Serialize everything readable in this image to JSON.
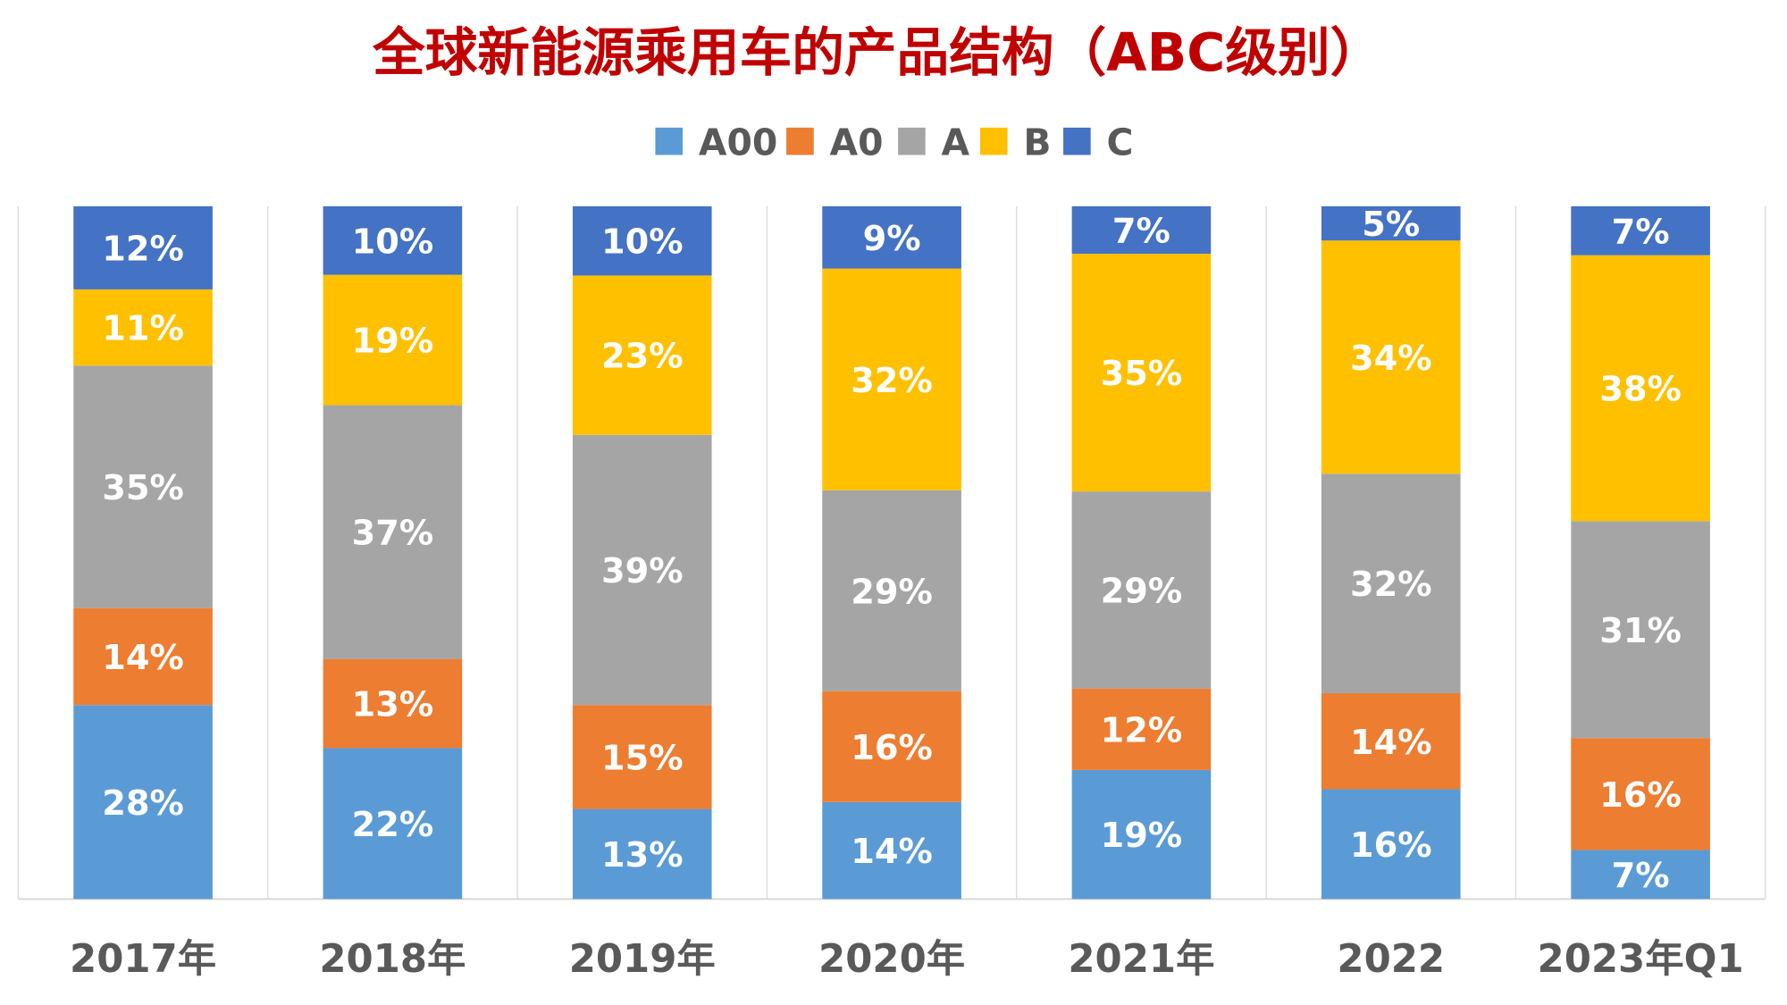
{
  "chart_data": {
    "type": "bar",
    "stacked": "percent",
    "title": "全球新能源乘用车的产品结构（ABC级别）",
    "categories": [
      "2017年",
      "2018年",
      "2019年",
      "2020年",
      "2021年",
      "2022",
      "2023年Q1"
    ],
    "series": [
      {
        "name": "A00",
        "color": "#5B9BD5",
        "values": [
          28,
          22,
          13,
          14,
          19,
          16,
          7
        ]
      },
      {
        "name": "A0",
        "color": "#ED7D31",
        "values": [
          14,
          13,
          15,
          16,
          12,
          14,
          16
        ]
      },
      {
        "name": "A",
        "color": "#A5A5A5",
        "values": [
          35,
          37,
          39,
          29,
          29,
          32,
          31
        ]
      },
      {
        "name": "B",
        "color": "#FFC000",
        "values": [
          11,
          19,
          23,
          32,
          35,
          34,
          38
        ]
      },
      {
        "name": "C",
        "color": "#4472C4",
        "values": [
          12,
          10,
          10,
          9,
          7,
          5,
          7
        ]
      }
    ],
    "value_format": "percent",
    "legend_position": "top",
    "grid": "vertical category separators",
    "ylim": [
      0,
      100
    ]
  }
}
